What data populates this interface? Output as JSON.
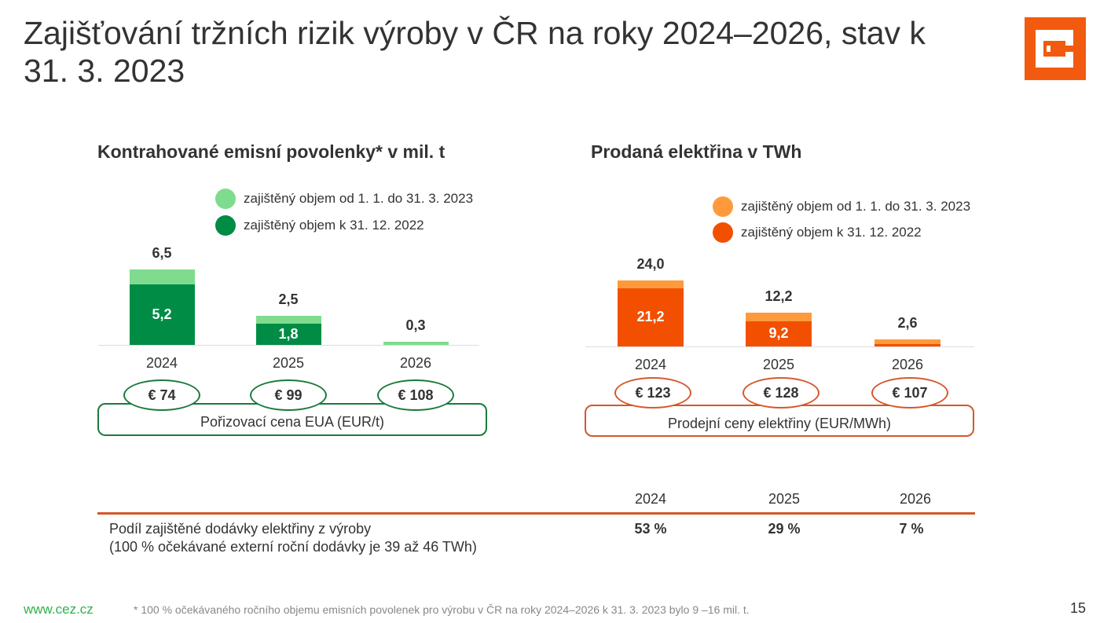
{
  "title": "Zajišťování tržních rizik výroby v ČR na roky 2024–2026, stav k 31. 3. 2023",
  "logo": "ČEZ",
  "chart_data": [
    {
      "type": "bar",
      "stacked": true,
      "title": "Kontrahované emisní povolenky* v mil. t",
      "categories": [
        "2024",
        "2025",
        "2026"
      ],
      "series": [
        {
          "name": "zajištěný objem k 31. 12. 2022",
          "color": "#008c45",
          "values": [
            5.2,
            1.8,
            0
          ],
          "labels": [
            "5,2",
            "1,8",
            ""
          ]
        },
        {
          "name": "zajištěný objem od 1. 1. do 31. 3. 2023",
          "color": "#7fdc8f",
          "values": [
            1.3,
            0.7,
            0.3
          ]
        }
      ],
      "totals": [
        6.5,
        2.5,
        0.3
      ],
      "total_labels": [
        "6,5",
        "2,5",
        "0,3"
      ],
      "prices": [
        "€ 74",
        "€ 99",
        "€ 108"
      ],
      "price_caption": "Pořizovací cena EUA (EUR/t)",
      "accent": "#1b7a3e"
    },
    {
      "type": "bar",
      "stacked": true,
      "title": "Prodaná elektřina v TWh",
      "categories": [
        "2024",
        "2025",
        "2026"
      ],
      "series": [
        {
          "name": "zajištěný objem k 31. 12. 2022",
          "color": "#f25000",
          "values": [
            21.2,
            9.2,
            0.8
          ],
          "labels": [
            "21,2",
            "9,2",
            ""
          ]
        },
        {
          "name": "zajištěný objem od 1. 1. do 31. 3. 2023",
          "color": "#ff9a3c",
          "values": [
            2.8,
            3.0,
            1.8
          ]
        }
      ],
      "totals": [
        24.0,
        12.2,
        2.6
      ],
      "total_labels": [
        "24,0",
        "12,2",
        "2,6"
      ],
      "prices": [
        "€ 123",
        "€ 128",
        "€ 107"
      ],
      "price_caption": "Prodejní ceny elektřiny (EUR/MWh)",
      "accent": "#d4582a"
    }
  ],
  "table": {
    "years": [
      "2024",
      "2025",
      "2026"
    ],
    "row_label": "Podíl zajištěné dodávky elektřiny z výroby",
    "row_note": "(100 % očekávané externí roční dodávky je 39 až 46 TWh)",
    "values": [
      "53 %",
      "29 %",
      "7 %"
    ]
  },
  "footer": {
    "website": "www.cez.cz",
    "footnote": "* 100 % očekávaného ročního objemu emisních povolenek pro výrobu v ČR na roky 2024–2026 k 31. 3. 2023 bylo 9 –16 mil. t.",
    "page": "15"
  }
}
